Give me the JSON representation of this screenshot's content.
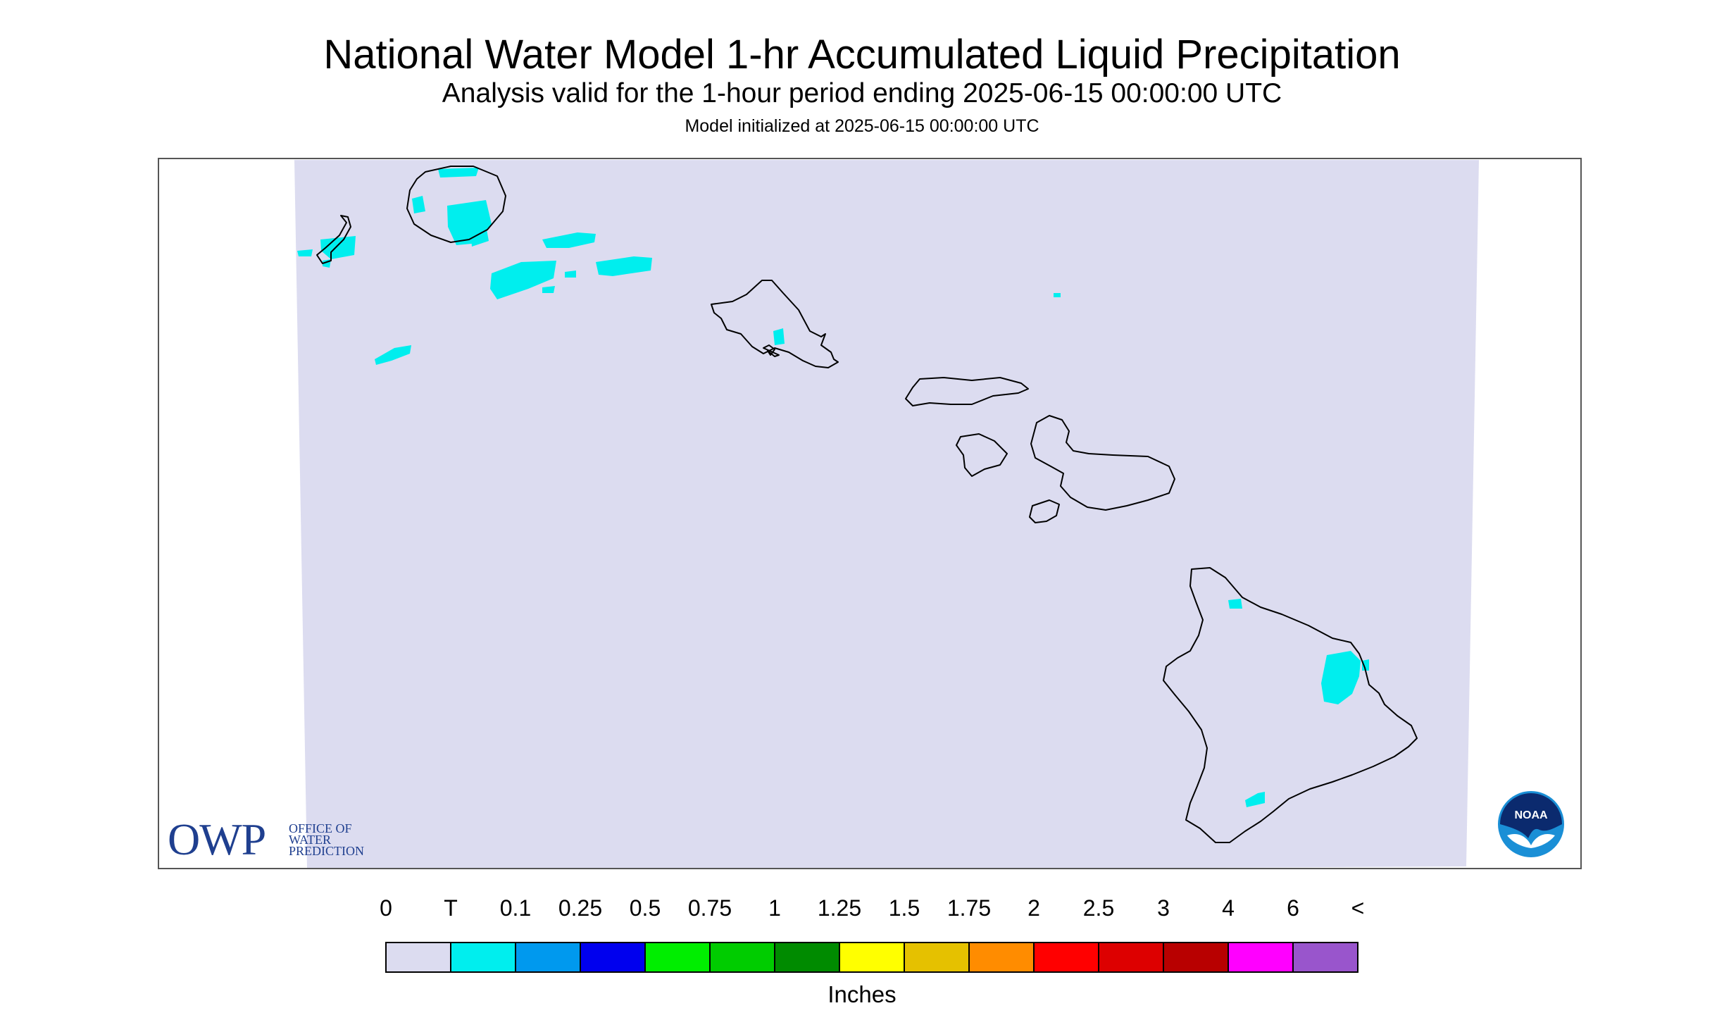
{
  "header": {
    "title": "National Water Model 1-hr Accumulated Liquid Precipitation",
    "subtitle": "Analysis valid for the 1-hour period ending 2025-06-15 00:00:00 UTC",
    "init": "Model initialized at 2025-06-15 00:00:00 UTC"
  },
  "legend": {
    "labels": [
      "0",
      "T",
      "0.1",
      "0.25",
      "0.5",
      "0.75",
      "1",
      "1.25",
      "1.5",
      "1.75",
      "2",
      "2.5",
      "3",
      "4",
      "6",
      "<"
    ],
    "colors": [
      "#dcdcf0",
      "#00eeee",
      "#0099ee",
      "#0000ee",
      "#00ee00",
      "#00cc00",
      "#008b00",
      "#ffff00",
      "#e5c100",
      "#ff8c00",
      "#ff0000",
      "#dd0000",
      "#b80000",
      "#ff00ff",
      "#9955cc"
    ],
    "units": "Inches"
  },
  "colors": {
    "no_precip": "#dcdcf0",
    "trace": "#00eeee",
    "coastline": "#000000",
    "frame": "#555555"
  },
  "logos": {
    "owp_mark": "OWP",
    "owp_lines": [
      "OFFICE OF",
      "WATER",
      "PREDICTION"
    ],
    "noaa_text": "NOAA"
  }
}
